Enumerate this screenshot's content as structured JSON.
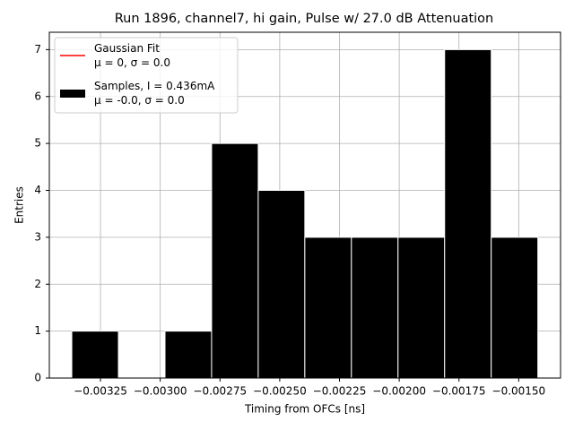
{
  "chart_data": {
    "type": "histogram",
    "title": "Run 1896, channel7, hi gain, Pulse w/ 27.0 dB Attenuation",
    "xlabel": "Timing from OFCs [ns]",
    "ylabel": "Entries",
    "bins": [
      -0.00337,
      -0.003175,
      -0.00298,
      -0.002785,
      -0.00259,
      -0.002395,
      -0.0022,
      -0.002005,
      -0.00181,
      -0.001615,
      -0.00142
    ],
    "values": [
      1,
      0,
      1,
      5,
      4,
      3,
      3,
      3,
      7,
      3
    ],
    "color": "#000000",
    "edgecolor": "#ffffff",
    "xlim": [
      -0.003464,
      -0.001325
    ],
    "ylim": [
      0,
      7.37
    ],
    "xticks": [
      {
        "value": -0.00325,
        "label": "−0.00325"
      },
      {
        "value": -0.003,
        "label": "−0.00300"
      },
      {
        "value": -0.00275,
        "label": "−0.00275"
      },
      {
        "value": -0.0025,
        "label": "−0.00250"
      },
      {
        "value": -0.00225,
        "label": "−0.00225"
      },
      {
        "value": -0.002,
        "label": "−0.00200"
      },
      {
        "value": -0.00175,
        "label": "−0.00175"
      },
      {
        "value": -0.0015,
        "label": "−0.00150"
      }
    ],
    "yticks": [
      0,
      1,
      2,
      3,
      4,
      5,
      6,
      7
    ],
    "grid": true,
    "legend_loc": "upper left",
    "legend": [
      {
        "name": "Gaussian Fit\nμ = 0, σ = 0.0",
        "color": "#ff0000",
        "kind": "line"
      },
      {
        "name": "Samples, I = 0.436mA\nμ = -0.0, σ = 0.0",
        "color": "#000000",
        "kind": "patch"
      }
    ]
  }
}
